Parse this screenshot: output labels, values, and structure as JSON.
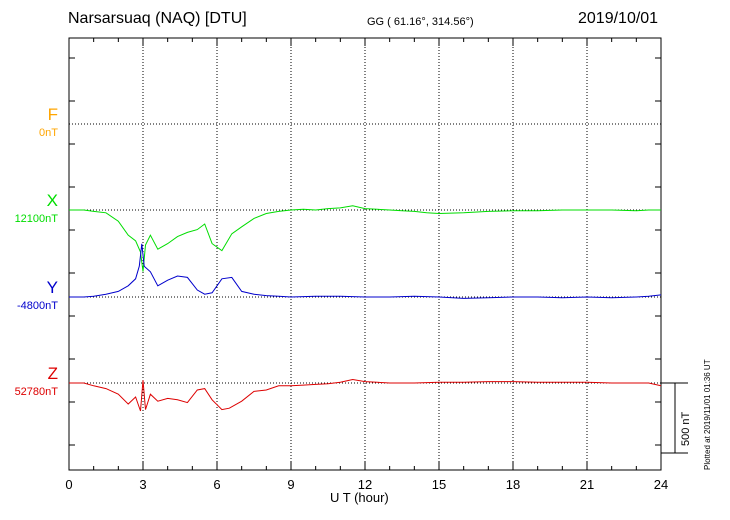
{
  "header": {
    "station": "Narsarsuaq (NAQ)  [DTU]",
    "coords": "GG ( 61.16°, 314.56°)",
    "date": "2019/10/01"
  },
  "footer": {
    "plotted": "Plotted at 2019/11/01 01:36 UT"
  },
  "scale": {
    "label": "500 nT",
    "nT": 500
  },
  "chart_data": {
    "type": "line",
    "xlabel": "U T (hour)",
    "xlim": [
      0,
      24
    ],
    "xticks": [
      "0",
      "3",
      "6",
      "9",
      "12",
      "15",
      "18",
      "21",
      "24"
    ],
    "series": [
      {
        "name": "F",
        "baseline_label": "0nT",
        "color": "#FFA500",
        "x": [],
        "y": []
      },
      {
        "name": "X",
        "baseline_label": "12100nT",
        "color": "#00DD00",
        "x": [
          0,
          0.6,
          1.0,
          1.5,
          2.0,
          2.4,
          2.7,
          2.9,
          3.0,
          3.1,
          3.3,
          3.6,
          4.0,
          4.4,
          4.8,
          5.2,
          5.5,
          5.8,
          6.2,
          6.6,
          7.0,
          7.5,
          8.0,
          8.5,
          9.0,
          9.5,
          10.0,
          10.5,
          11.0,
          11.5,
          12.0,
          12.5,
          13.0,
          13.5,
          14.0,
          14.5,
          15.0,
          15.5,
          16.0,
          17.0,
          18.0,
          19.0,
          20.0,
          21.0,
          22.0,
          23.0,
          23.5,
          24.0
        ],
        "y": [
          0,
          0,
          -10,
          -20,
          -80,
          -180,
          -220,
          -300,
          -440,
          -250,
          -180,
          -280,
          -240,
          -190,
          -160,
          -140,
          -100,
          -240,
          -290,
          -170,
          -120,
          -60,
          -25,
          -10,
          0,
          5,
          0,
          10,
          15,
          30,
          10,
          5,
          0,
          -5,
          -10,
          -20,
          -25,
          -22,
          -20,
          -10,
          -5,
          -5,
          0,
          0,
          0,
          -5,
          0,
          0
        ]
      },
      {
        "name": "Y",
        "baseline_label": "-4800nT",
        "color": "#0000CC",
        "x": [
          0,
          0.6,
          1.0,
          1.5,
          2.0,
          2.4,
          2.7,
          2.85,
          2.95,
          3.05,
          3.3,
          3.6,
          4.0,
          4.4,
          4.8,
          5.2,
          5.5,
          5.8,
          6.2,
          6.6,
          7.0,
          7.5,
          8.0,
          8.5,
          9.0,
          10.0,
          11.0,
          12.0,
          13.0,
          14.0,
          15.0,
          16.0,
          17.0,
          18.0,
          19.0,
          20.0,
          21.0,
          22.0,
          23.0,
          23.5,
          24.0
        ],
        "y": [
          0,
          0,
          5,
          20,
          40,
          80,
          130,
          220,
          380,
          220,
          180,
          80,
          120,
          150,
          140,
          50,
          20,
          30,
          130,
          140,
          40,
          20,
          10,
          5,
          0,
          5,
          5,
          0,
          0,
          5,
          0,
          -10,
          -5,
          0,
          0,
          -5,
          0,
          -5,
          0,
          5,
          15
        ]
      },
      {
        "name": "Z",
        "baseline_label": "52780nT",
        "color": "#DD0000",
        "x": [
          0,
          0.6,
          1.0,
          1.5,
          2.0,
          2.4,
          2.7,
          2.9,
          3.0,
          3.1,
          3.3,
          3.6,
          4.0,
          4.4,
          4.8,
          5.2,
          5.5,
          5.8,
          6.2,
          6.5,
          7.0,
          7.5,
          8.0,
          8.5,
          9.0,
          9.5,
          10.0,
          10.5,
          11.0,
          11.5,
          12.0,
          12.5,
          13.0,
          14.0,
          15.0,
          16.0,
          17.0,
          18.0,
          19.0,
          20.0,
          21.0,
          22.0,
          23.0,
          23.5,
          24.0
        ],
        "y": [
          0,
          0,
          -20,
          -40,
          -80,
          -150,
          -100,
          -200,
          20,
          -190,
          -80,
          -130,
          -110,
          -120,
          -140,
          -50,
          -40,
          -120,
          -190,
          -180,
          -130,
          -60,
          -50,
          -20,
          -20,
          -15,
          -10,
          -5,
          5,
          25,
          10,
          5,
          0,
          0,
          5,
          5,
          10,
          10,
          5,
          5,
          5,
          0,
          0,
          0,
          -20
        ]
      }
    ]
  }
}
